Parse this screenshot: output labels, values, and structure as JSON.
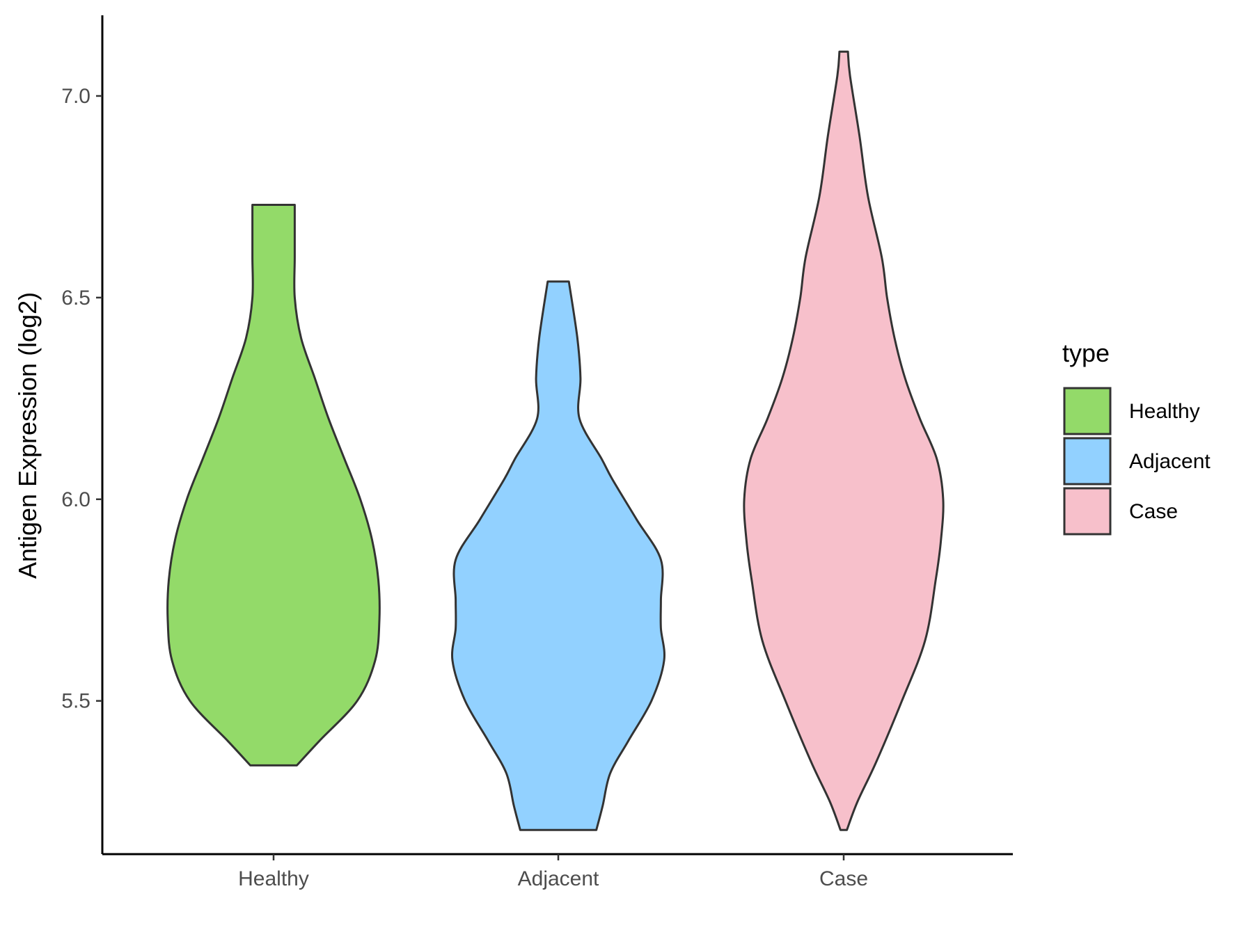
{
  "chart_data": {
    "type": "violin",
    "title": "",
    "xlabel": "",
    "ylabel": "Antigen Expression (log2)",
    "ylim": [
      5.12,
      7.2
    ],
    "yticks": [
      5.5,
      6.0,
      6.5,
      7.0
    ],
    "ytick_labels": [
      "5.5",
      "6.0",
      "6.5",
      "7.0"
    ],
    "categories": [
      "Healthy",
      "Adjacent",
      "Case"
    ],
    "grid": false,
    "legend": {
      "title": "type",
      "placement": "right",
      "entries": [
        "Healthy",
        "Adjacent",
        "Case"
      ]
    },
    "series": [
      {
        "name": "Healthy",
        "color": "#93DA69",
        "min": 5.34,
        "max": 6.73,
        "density": [
          [
            5.34,
            0.22
          ],
          [
            5.4,
            0.43
          ],
          [
            5.5,
            0.79
          ],
          [
            5.6,
            0.96
          ],
          [
            5.7,
            1.0
          ],
          [
            5.8,
            0.99
          ],
          [
            5.9,
            0.93
          ],
          [
            6.0,
            0.82
          ],
          [
            6.1,
            0.67
          ],
          [
            6.2,
            0.52
          ],
          [
            6.3,
            0.39
          ],
          [
            6.4,
            0.26
          ],
          [
            6.5,
            0.2
          ],
          [
            6.6,
            0.2
          ],
          [
            6.7,
            0.2
          ],
          [
            6.73,
            0.2
          ]
        ]
      },
      {
        "name": "Adjacent",
        "color": "#92D1FF",
        "min": 5.18,
        "max": 6.54,
        "density": [
          [
            5.18,
            0.36
          ],
          [
            5.24,
            0.42
          ],
          [
            5.32,
            0.49
          ],
          [
            5.4,
            0.66
          ],
          [
            5.5,
            0.88
          ],
          [
            5.6,
            1.0
          ],
          [
            5.68,
            0.97
          ],
          [
            5.75,
            0.97
          ],
          [
            5.85,
            0.97
          ],
          [
            5.95,
            0.74
          ],
          [
            6.05,
            0.51
          ],
          [
            6.1,
            0.41
          ],
          [
            6.2,
            0.2
          ],
          [
            6.3,
            0.21
          ],
          [
            6.4,
            0.18
          ],
          [
            6.54,
            0.1
          ]
        ]
      },
      {
        "name": "Case",
        "color": "#F7C0CB",
        "min": 5.18,
        "max": 7.11,
        "density": [
          [
            5.18,
            0.03
          ],
          [
            5.25,
            0.13
          ],
          [
            5.35,
            0.31
          ],
          [
            5.5,
            0.55
          ],
          [
            5.65,
            0.77
          ],
          [
            5.8,
            0.87
          ],
          [
            5.9,
            0.92
          ],
          [
            6.0,
            0.94
          ],
          [
            6.1,
            0.88
          ],
          [
            6.2,
            0.72
          ],
          [
            6.3,
            0.58
          ],
          [
            6.4,
            0.48
          ],
          [
            6.5,
            0.41
          ],
          [
            6.6,
            0.36
          ],
          [
            6.75,
            0.23
          ],
          [
            6.9,
            0.15
          ],
          [
            7.05,
            0.06
          ],
          [
            7.11,
            0.04
          ]
        ]
      }
    ]
  }
}
